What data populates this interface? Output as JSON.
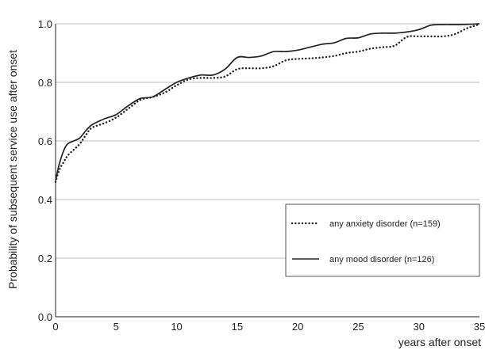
{
  "chart_data": {
    "type": "line",
    "title": "",
    "xlabel": "years after onset",
    "ylabel": "Probability of subsequent service use after onset",
    "xlim": [
      0,
      35
    ],
    "ylim": [
      0,
      1.0
    ],
    "x_ticks": [
      0,
      5,
      10,
      15,
      20,
      25,
      30,
      35
    ],
    "x_tick_labels": [
      "0",
      "5",
      "10",
      "15",
      "20",
      "25",
      "30",
      "35"
    ],
    "y_ticks": [
      0,
      0.2,
      0.4,
      0.6,
      0.8,
      1.0
    ],
    "y_tick_labels": [
      "0.0",
      "0.2",
      "0.4",
      "0.6",
      "0.8",
      "1.0"
    ],
    "grid": "horizontal",
    "legend_position": "lower-right",
    "series": [
      {
        "name": "any anxiety disorder (n=159)",
        "style": "dotted",
        "color": "#222222",
        "points": [
          [
            0,
            0.46
          ],
          [
            0.3,
            0.5
          ],
          [
            0.7,
            0.53
          ],
          [
            1,
            0.55
          ],
          [
            1.5,
            0.57
          ],
          [
            2,
            0.59
          ],
          [
            2.5,
            0.62
          ],
          [
            3,
            0.645
          ],
          [
            4,
            0.66
          ],
          [
            5,
            0.68
          ],
          [
            6,
            0.71
          ],
          [
            7,
            0.74
          ],
          [
            8,
            0.75
          ],
          [
            9,
            0.765
          ],
          [
            10,
            0.79
          ],
          [
            11,
            0.81
          ],
          [
            12,
            0.815
          ],
          [
            13,
            0.815
          ],
          [
            14,
            0.82
          ],
          [
            15,
            0.845
          ],
          [
            16,
            0.848
          ],
          [
            17,
            0.848
          ],
          [
            18,
            0.855
          ],
          [
            19,
            0.875
          ],
          [
            20,
            0.88
          ],
          [
            21,
            0.882
          ],
          [
            22,
            0.885
          ],
          [
            23,
            0.89
          ],
          [
            24,
            0.9
          ],
          [
            25,
            0.905
          ],
          [
            26,
            0.915
          ],
          [
            27,
            0.92
          ],
          [
            28,
            0.925
          ],
          [
            29,
            0.955
          ],
          [
            30,
            0.957
          ],
          [
            31,
            0.957
          ],
          [
            32,
            0.957
          ],
          [
            33,
            0.965
          ],
          [
            34,
            0.985
          ],
          [
            35,
            0.998
          ]
        ]
      },
      {
        "name": "any mood disorder (n=126)",
        "style": "solid",
        "color": "#222222",
        "points": [
          [
            0,
            0.465
          ],
          [
            0.3,
            0.52
          ],
          [
            0.7,
            0.57
          ],
          [
            1,
            0.59
          ],
          [
            1.5,
            0.6
          ],
          [
            2,
            0.61
          ],
          [
            2.5,
            0.635
          ],
          [
            3,
            0.655
          ],
          [
            4,
            0.675
          ],
          [
            5,
            0.69
          ],
          [
            6,
            0.72
          ],
          [
            7,
            0.745
          ],
          [
            8,
            0.75
          ],
          [
            9,
            0.775
          ],
          [
            10,
            0.8
          ],
          [
            11,
            0.815
          ],
          [
            12,
            0.825
          ],
          [
            13,
            0.825
          ],
          [
            14,
            0.845
          ],
          [
            15,
            0.885
          ],
          [
            16,
            0.885
          ],
          [
            17,
            0.89
          ],
          [
            18,
            0.905
          ],
          [
            19,
            0.905
          ],
          [
            20,
            0.91
          ],
          [
            21,
            0.92
          ],
          [
            22,
            0.93
          ],
          [
            23,
            0.935
          ],
          [
            24,
            0.95
          ],
          [
            25,
            0.952
          ],
          [
            26,
            0.965
          ],
          [
            27,
            0.968
          ],
          [
            28,
            0.968
          ],
          [
            29,
            0.972
          ],
          [
            30,
            0.98
          ],
          [
            31,
            0.995
          ],
          [
            32,
            0.997
          ],
          [
            33,
            0.997
          ],
          [
            34,
            0.998
          ],
          [
            35,
            1.0
          ]
        ]
      }
    ]
  }
}
